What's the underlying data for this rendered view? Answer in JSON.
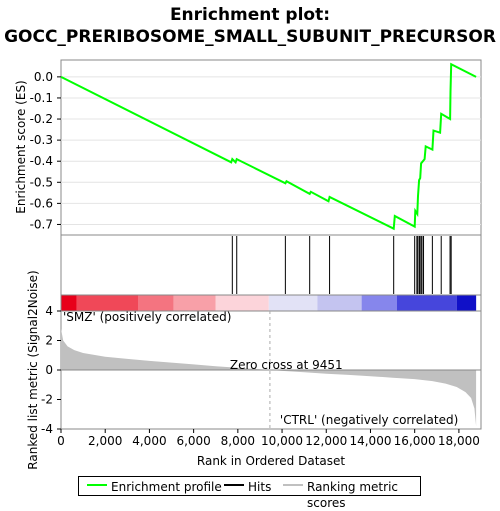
{
  "title_line1": "Enrichment plot:",
  "title_line2": "GOCC_PRERIBOSOME_SMALL_SUBUNIT_PRECURSOR",
  "chart_data": {
    "type": "line",
    "xlabel": "Rank in Ordered Dataset",
    "es_ylabel": "Enrichment score (ES)",
    "metric_ylabel": "Ranked list metric (Signal2Noise)",
    "x_ticks": [
      "0",
      "2,000",
      "4,000",
      "6,000",
      "8,000",
      "10,000",
      "12,000",
      "14,000",
      "16,000",
      "18,000"
    ],
    "x_tick_values": [
      0,
      2000,
      4000,
      6000,
      8000,
      10000,
      12000,
      14000,
      16000,
      18000
    ],
    "xlim": [
      0,
      19000
    ],
    "es_ylim": [
      -0.75,
      0.08
    ],
    "es_y_ticks": [
      "0.0",
      "-0.1",
      "-0.2",
      "-0.3",
      "-0.4",
      "-0.5",
      "-0.6",
      "-0.7"
    ],
    "es_y_tick_values": [
      0.0,
      -0.1,
      -0.2,
      -0.3,
      -0.4,
      -0.5,
      -0.6,
      -0.7
    ],
    "metric_ylim": [
      -4,
      4
    ],
    "metric_y_ticks": [
      "4",
      "2",
      "0",
      "-2",
      "-4"
    ],
    "metric_y_tick_values": [
      4,
      2,
      0,
      -2,
      -4
    ],
    "series": [
      {
        "name": "Enrichment profile",
        "color": "#00ff00",
        "x": [
          0,
          7700,
          7750,
          7900,
          7950,
          10150,
          10200,
          11250,
          11300,
          12100,
          12150,
          15050,
          15100,
          16000,
          16030,
          16120,
          16150,
          16200,
          16250,
          16290,
          16330,
          16450,
          16500,
          16800,
          16850,
          17150,
          17200,
          17600,
          17620,
          17650,
          18780
        ],
        "y": [
          0.0,
          -0.405,
          -0.39,
          -0.405,
          -0.39,
          -0.505,
          -0.495,
          -0.555,
          -0.545,
          -0.59,
          -0.57,
          -0.72,
          -0.66,
          -0.71,
          -0.635,
          -0.65,
          -0.565,
          -0.49,
          -0.48,
          -0.41,
          -0.405,
          -0.39,
          -0.33,
          -0.345,
          -0.255,
          -0.265,
          -0.175,
          -0.2,
          -0.07,
          0.06,
          0.0
        ]
      }
    ],
    "hits": [
      7750,
      7950,
      10150,
      11250,
      12150,
      15050,
      16000,
      16100,
      16150,
      16220,
      16280,
      16330,
      16400,
      16800,
      17200,
      17600,
      17650
    ],
    "metric": {
      "x": [
        0,
        100,
        300,
        600,
        1000,
        2000,
        3000,
        4000,
        5000,
        6000,
        7000,
        8000,
        9000,
        9451,
        10000,
        11000,
        12000,
        13000,
        14000,
        15000,
        16000,
        16800,
        17400,
        17900,
        18300,
        18550,
        18700,
        18780
      ],
      "y": [
        2.8,
        2.0,
        1.6,
        1.35,
        1.15,
        0.9,
        0.75,
        0.62,
        0.5,
        0.38,
        0.26,
        0.15,
        0.05,
        0.0,
        -0.06,
        -0.15,
        -0.25,
        -0.33,
        -0.42,
        -0.52,
        -0.62,
        -0.75,
        -0.92,
        -1.15,
        -1.5,
        -1.9,
        -2.6,
        -3.8
      ]
    },
    "zero_cross_label": "Zero cross at 9451",
    "zero_cross_value": 9451,
    "pos_label": "'SMZ' (positively correlated)",
    "neg_label": "'CTRL' (negatively correlated)",
    "legend": [
      {
        "label": "Enrichment profile",
        "color": "#00ff00"
      },
      {
        "label": "Hits",
        "color": "#000000"
      },
      {
        "label": "Ranking metric scores",
        "color": "#c0c0c0"
      }
    ],
    "colors": {
      "es_line": "#00ff00",
      "hit_line": "#000000",
      "metric_fill": "#c0c0c0",
      "pos_label": "#cc0000",
      "neg_label": "#0000cc"
    },
    "heatbar_segments": [
      {
        "to": 700,
        "color": "#e8001a"
      },
      {
        "to": 3500,
        "color": "#f04858"
      },
      {
        "to": 5100,
        "color": "#f47480"
      },
      {
        "to": 7000,
        "color": "#f8a0a8"
      },
      {
        "to": 9400,
        "color": "#fcd4da"
      },
      {
        "to": 11600,
        "color": "#e2e2f6"
      },
      {
        "to": 13600,
        "color": "#c4c4f0"
      },
      {
        "to": 15200,
        "color": "#8686ec"
      },
      {
        "to": 17900,
        "color": "#4646dc"
      },
      {
        "to": 18780,
        "color": "#1010c8"
      }
    ]
  }
}
